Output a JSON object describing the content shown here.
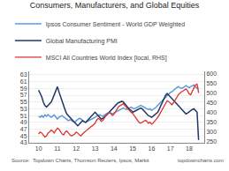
{
  "chart_data": {
    "type": "line",
    "title": "Consumers, Manufacturers, and Global Equities",
    "annotations": [
      "Source:  Topdown Charts, Thomson Reuters, Ipsos, Markit",
      "topdowncharts.com"
    ],
    "x": [
      10.0,
      10.08,
      10.17,
      10.25,
      10.33,
      10.42,
      10.5,
      10.58,
      10.67,
      10.75,
      10.83,
      10.92,
      11.0,
      11.08,
      11.17,
      11.25,
      11.33,
      11.42,
      11.5,
      11.58,
      11.67,
      11.75,
      11.83,
      11.92,
      12.0,
      12.08,
      12.17,
      12.25,
      12.33,
      12.42,
      12.5,
      12.58,
      12.67,
      12.75,
      12.83,
      12.92,
      13.0,
      13.08,
      13.17,
      13.25,
      13.33,
      13.42,
      13.5,
      13.58,
      13.67,
      13.75,
      13.83,
      13.92,
      14.0,
      14.08,
      14.17,
      14.25,
      14.33,
      14.42,
      14.5,
      14.58,
      14.67,
      14.75,
      14.83,
      14.92,
      15.0,
      15.08,
      15.17,
      15.25,
      15.33,
      15.42,
      15.5,
      15.58,
      15.67,
      15.75,
      15.83,
      15.92,
      16.0,
      16.08,
      16.17,
      16.25,
      16.33,
      16.42,
      16.5,
      16.58,
      16.67,
      16.75,
      16.83,
      16.92,
      17.0,
      17.08,
      17.17,
      17.25,
      17.33,
      17.42,
      17.5,
      17.58,
      17.67,
      17.75,
      17.83,
      17.92,
      18.0,
      18.08,
      18.17,
      18.25,
      18.33,
      18.42,
      18.5
    ],
    "xlim": [
      9.5,
      18.8
    ],
    "xticks": [
      10,
      11,
      12,
      13,
      14,
      15,
      16,
      17,
      18
    ],
    "ylim": [
      43,
      64
    ],
    "yticks": [
      43,
      45,
      47,
      49,
      51,
      53,
      55,
      57,
      59,
      61,
      63
    ],
    "y2lim": [
      245,
      610
    ],
    "y2ticks": [
      250,
      300,
      350,
      400,
      450,
      500,
      550,
      600
    ],
    "grid": true,
    "legend": "top",
    "series": [
      {
        "name": "Ipsos Consumer Sentiment - World GDP Weighted",
        "color": "#5b9bd5",
        "values": [
          50.8,
          50.5,
          51.0,
          50.5,
          51.2,
          50.8,
          51.3,
          51.0,
          50.5,
          50.8,
          51.2,
          50.6,
          50.0,
          50.5,
          50.8,
          51.0,
          50.6,
          50.2,
          49.8,
          49.5,
          49.8,
          49.5,
          49.2,
          49.0,
          49.5,
          49.8,
          50.2,
          50.0,
          49.5,
          49.2,
          49.0,
          49.3,
          49.5,
          49.8,
          50.0,
          50.2,
          50.5,
          50.8,
          51.0,
          51.2,
          51.0,
          50.8,
          51.2,
          51.5,
          51.8,
          52.0,
          51.8,
          51.5,
          51.8,
          52.0,
          52.2,
          52.5,
          52.8,
          53.0,
          53.2,
          53.0,
          52.8,
          53.0,
          53.2,
          53.5,
          53.2,
          53.0,
          53.2,
          53.5,
          53.8,
          54.0,
          53.8,
          53.5,
          53.2,
          53.0,
          52.8,
          53.0,
          52.5,
          52.8,
          53.0,
          53.5,
          54.0,
          54.5,
          55.0,
          55.5,
          56.0,
          56.5,
          57.0,
          57.5,
          57.8,
          58.0,
          58.5,
          59.0,
          59.2,
          59.5,
          59.2,
          59.0,
          59.2,
          59.5,
          59.8,
          59.5,
          59.2,
          59.5,
          59.8,
          60.0,
          59.5,
          59.0,
          59.2
        ]
      },
      {
        "name": "Global Manufacturing PMI",
        "color": "#1f3864",
        "values": [
          58.5,
          57.5,
          56.5,
          55.0,
          54.0,
          53.5,
          54.0,
          54.5,
          55.0,
          56.0,
          57.0,
          58.5,
          59.5,
          58.0,
          56.5,
          55.0,
          53.5,
          52.5,
          51.5,
          51.0,
          50.5,
          50.0,
          49.5,
          49.0,
          48.5,
          48.0,
          48.5,
          49.0,
          49.5,
          49.2,
          49.0,
          49.5,
          50.0,
          50.5,
          51.0,
          51.5,
          52.0,
          51.5,
          51.0,
          50.5,
          50.0,
          50.2,
          50.5,
          51.0,
          51.5,
          52.0,
          52.5,
          53.0,
          53.5,
          54.0,
          54.5,
          54.8,
          55.0,
          55.2,
          55.0,
          54.5,
          53.8,
          53.2,
          52.8,
          52.5,
          52.0,
          52.2,
          52.5,
          52.8,
          53.0,
          53.2,
          53.0,
          52.5,
          52.0,
          51.5,
          51.0,
          50.8,
          50.5,
          50.8,
          51.2,
          51.5,
          52.0,
          53.0,
          54.0,
          55.0,
          56.0,
          57.0,
          57.5,
          57.0,
          56.5,
          56.0,
          55.5,
          55.0,
          54.5,
          54.0,
          53.5,
          53.0,
          52.5,
          52.0,
          51.5,
          51.8,
          52.2,
          52.5,
          52.8,
          53.0,
          52.5,
          52.0,
          43.8
        ]
      },
      {
        "name": "MSCI All Countries World Index [local, RHS]",
        "color": "#e03030",
        "axis": "y2",
        "values": [
          290,
          300,
          295,
          285,
          275,
          280,
          295,
          300,
          310,
          305,
          295,
          310,
          320,
          315,
          300,
          290,
          285,
          300,
          305,
          295,
          285,
          280,
          285,
          290,
          300,
          295,
          285,
          280,
          290,
          300,
          305,
          310,
          320,
          325,
          330,
          340,
          345,
          360,
          370,
          365,
          355,
          360,
          375,
          385,
          395,
          400,
          395,
          385,
          390,
          405,
          420,
          430,
          435,
          440,
          445,
          435,
          425,
          415,
          405,
          400,
          395,
          385,
          370,
          360,
          350,
          345,
          350,
          355,
          360,
          355,
          345,
          350,
          340,
          345,
          355,
          365,
          375,
          390,
          405,
          420,
          430,
          445,
          460,
          455,
          445,
          440,
          450,
          460,
          475,
          490,
          500,
          505,
          510,
          515,
          520,
          510,
          495,
          490,
          505,
          525,
          540,
          545,
          500
        ]
      }
    ]
  }
}
